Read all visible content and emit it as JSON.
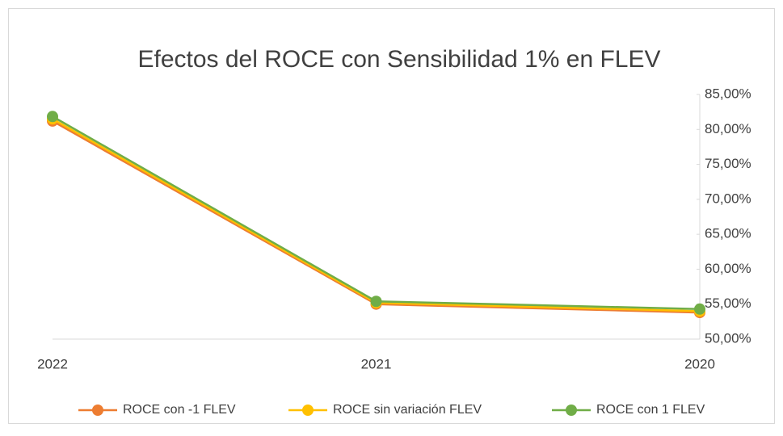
{
  "chart_data": {
    "type": "line",
    "title": "Efectos del ROCE con Sensibilidad 1% en FLEV",
    "categories": [
      "2022",
      "2021",
      "2020"
    ],
    "series": [
      {
        "name": "ROCE con -1 FLEV",
        "color": "#ed7d31",
        "values": [
          81.2,
          55.0,
          53.8
        ]
      },
      {
        "name": "ROCE sin variación FLEV",
        "color": "#ffc000",
        "values": [
          81.5,
          55.2,
          54.0
        ]
      },
      {
        "name": "ROCE con 1 FLEV",
        "color": "#70ad47",
        "values": [
          81.85,
          55.4,
          54.3
        ]
      }
    ],
    "ylim": [
      50,
      85
    ],
    "yticks": [
      {
        "value": 50,
        "label": "50,00%"
      },
      {
        "value": 55,
        "label": "55,00%"
      },
      {
        "value": 60,
        "label": "60,00%"
      },
      {
        "value": 65,
        "label": "65,00%"
      },
      {
        "value": 70,
        "label": "70,00%"
      },
      {
        "value": 75,
        "label": "75,00%"
      },
      {
        "value": 80,
        "label": "80,00%"
      },
      {
        "value": 85,
        "label": "85,00%"
      }
    ],
    "y_axis_side": "right",
    "grid": false,
    "legend": "bottom"
  }
}
